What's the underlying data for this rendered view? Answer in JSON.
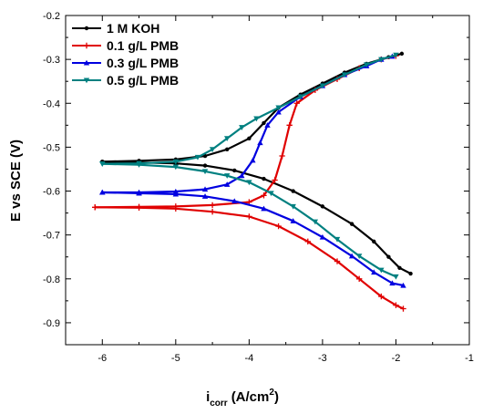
{
  "chart_data": {
    "type": "line",
    "xlabel_main": "i",
    "xlabel_sub": "corr",
    "xlabel_unit": "(A/cm",
    "xlabel_sup": "2",
    "xlabel_close": ")",
    "ylabel": "E vs SCE (V)",
    "xlim": [
      -6.5,
      -1
    ],
    "ylim": [
      -0.2,
      -0.95
    ],
    "x_ticks": [
      -6,
      -5,
      -4,
      -3,
      -2,
      -1
    ],
    "y_ticks": [
      -0.2,
      -0.3,
      -0.4,
      -0.5,
      -0.6,
      -0.7,
      -0.8,
      -0.9
    ],
    "x_tick_labels": [
      "-6",
      "-5",
      "-4",
      "-3",
      "-2",
      "-1"
    ],
    "y_tick_labels": [
      "-0.2",
      "-0.3",
      "-0.4",
      "-0.5",
      "-0.6",
      "-0.7",
      "-0.8",
      "-0.9"
    ],
    "legend_position": "top-left",
    "grid": false,
    "series": [
      {
        "name": "1 M KOH",
        "color": "#000000",
        "marker": "circle",
        "anodic": [
          [
            -6.0,
            -0.533
          ],
          [
            -5.5,
            -0.531
          ],
          [
            -5.0,
            -0.528
          ],
          [
            -4.6,
            -0.52
          ],
          [
            -4.3,
            -0.505
          ],
          [
            -4.0,
            -0.48
          ],
          [
            -3.8,
            -0.445
          ],
          [
            -3.6,
            -0.41
          ],
          [
            -3.3,
            -0.38
          ],
          [
            -3.0,
            -0.355
          ],
          [
            -2.7,
            -0.33
          ],
          [
            -2.4,
            -0.31
          ],
          [
            -2.1,
            -0.295
          ],
          [
            -1.92,
            -0.287
          ]
        ],
        "cathodic": [
          [
            -6.0,
            -0.533
          ],
          [
            -5.5,
            -0.535
          ],
          [
            -5.0,
            -0.537
          ],
          [
            -4.6,
            -0.542
          ],
          [
            -4.2,
            -0.553
          ],
          [
            -3.8,
            -0.572
          ],
          [
            -3.4,
            -0.6
          ],
          [
            -3.0,
            -0.635
          ],
          [
            -2.6,
            -0.675
          ],
          [
            -2.3,
            -0.715
          ],
          [
            -2.1,
            -0.75
          ],
          [
            -1.95,
            -0.775
          ],
          [
            -1.8,
            -0.788
          ]
        ]
      },
      {
        "name": "0.1 g/L PMB",
        "color": "#e00000",
        "marker": "plus",
        "anodic": [
          [
            -6.1,
            -0.637
          ],
          [
            -5.5,
            -0.636
          ],
          [
            -5.0,
            -0.635
          ],
          [
            -4.5,
            -0.632
          ],
          [
            -4.0,
            -0.625
          ],
          [
            -3.8,
            -0.61
          ],
          [
            -3.65,
            -0.575
          ],
          [
            -3.55,
            -0.52
          ],
          [
            -3.45,
            -0.45
          ],
          [
            -3.35,
            -0.4
          ],
          [
            -3.1,
            -0.37
          ],
          [
            -2.8,
            -0.345
          ],
          [
            -2.5,
            -0.32
          ],
          [
            -2.2,
            -0.3
          ],
          [
            -2.0,
            -0.292
          ]
        ],
        "cathodic": [
          [
            -6.1,
            -0.637
          ],
          [
            -5.5,
            -0.638
          ],
          [
            -5.0,
            -0.64
          ],
          [
            -4.5,
            -0.647
          ],
          [
            -4.0,
            -0.658
          ],
          [
            -3.6,
            -0.68
          ],
          [
            -3.2,
            -0.715
          ],
          [
            -2.8,
            -0.76
          ],
          [
            -2.5,
            -0.8
          ],
          [
            -2.2,
            -0.84
          ],
          [
            -2.0,
            -0.86
          ],
          [
            -1.9,
            -0.868
          ]
        ]
      },
      {
        "name": "0.3 g/L PMB",
        "color": "#0000e0",
        "marker": "triangle",
        "anodic": [
          [
            -6.0,
            -0.603
          ],
          [
            -5.5,
            -0.603
          ],
          [
            -5.0,
            -0.601
          ],
          [
            -4.6,
            -0.596
          ],
          [
            -4.3,
            -0.585
          ],
          [
            -4.1,
            -0.565
          ],
          [
            -3.95,
            -0.53
          ],
          [
            -3.85,
            -0.49
          ],
          [
            -3.75,
            -0.45
          ],
          [
            -3.6,
            -0.42
          ],
          [
            -3.3,
            -0.385
          ],
          [
            -3.0,
            -0.36
          ],
          [
            -2.7,
            -0.335
          ],
          [
            -2.4,
            -0.315
          ],
          [
            -2.2,
            -0.3
          ],
          [
            -2.05,
            -0.293
          ]
        ],
        "cathodic": [
          [
            -6.0,
            -0.603
          ],
          [
            -5.5,
            -0.605
          ],
          [
            -5.0,
            -0.607
          ],
          [
            -4.6,
            -0.612
          ],
          [
            -4.2,
            -0.623
          ],
          [
            -3.8,
            -0.64
          ],
          [
            -3.4,
            -0.668
          ],
          [
            -3.0,
            -0.705
          ],
          [
            -2.6,
            -0.748
          ],
          [
            -2.3,
            -0.785
          ],
          [
            -2.05,
            -0.81
          ],
          [
            -1.9,
            -0.815
          ]
        ]
      },
      {
        "name": "0.5 g/L PMB",
        "color": "#008080",
        "marker": "triangle-down",
        "anodic": [
          [
            -6.0,
            -0.538
          ],
          [
            -5.5,
            -0.537
          ],
          [
            -5.0,
            -0.533
          ],
          [
            -4.7,
            -0.523
          ],
          [
            -4.5,
            -0.505
          ],
          [
            -4.3,
            -0.48
          ],
          [
            -4.1,
            -0.455
          ],
          [
            -3.9,
            -0.435
          ],
          [
            -3.6,
            -0.41
          ],
          [
            -3.3,
            -0.385
          ],
          [
            -3.0,
            -0.36
          ],
          [
            -2.7,
            -0.335
          ],
          [
            -2.4,
            -0.312
          ],
          [
            -2.2,
            -0.3
          ],
          [
            -2.0,
            -0.29
          ]
        ],
        "cathodic": [
          [
            -6.0,
            -0.538
          ],
          [
            -5.5,
            -0.54
          ],
          [
            -5.0,
            -0.545
          ],
          [
            -4.6,
            -0.555
          ],
          [
            -4.3,
            -0.565
          ],
          [
            -4.0,
            -0.58
          ],
          [
            -3.7,
            -0.605
          ],
          [
            -3.4,
            -0.635
          ],
          [
            -3.1,
            -0.67
          ],
          [
            -2.8,
            -0.71
          ],
          [
            -2.5,
            -0.748
          ],
          [
            -2.2,
            -0.78
          ],
          [
            -2.0,
            -0.795
          ]
        ]
      }
    ]
  }
}
